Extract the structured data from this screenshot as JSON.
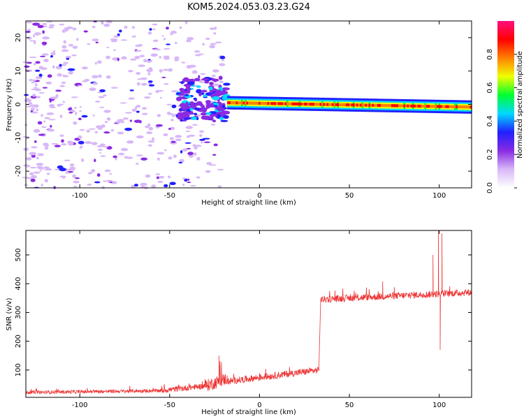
{
  "title": "KOM5.2024.053.03.23.G24",
  "chart_data": [
    {
      "type": "heatmap",
      "xlabel": "Height of straight line (km)",
      "ylabel": "Frequency (Hz)",
      "xlim": [
        -130,
        118
      ],
      "ylim": [
        -25,
        25
      ],
      "xticks": [
        -100,
        -50,
        0,
        50,
        100
      ],
      "yticks": [
        -20,
        -10,
        0,
        10,
        20
      ],
      "colorbar": {
        "label": "Normalized spectral amplitude",
        "range": [
          0,
          1
        ],
        "ticks": [
          "0.0",
          "0.2",
          "0.4",
          "0.6",
          "0.8"
        ],
        "colors": [
          "#ffffff",
          "#d8b8f8",
          "#8a2be2",
          "#2020ff",
          "#00d8ff",
          "#00ff30",
          "#f0ff00",
          "#ff8000",
          "#ff0000",
          "#ff1080"
        ]
      },
      "features": [
        {
          "name": "noise",
          "x_range": [
            -130,
            -40
          ],
          "y_range": [
            -25,
            25
          ],
          "amplitude": 0.1
        },
        {
          "name": "cluster",
          "x_range": [
            -45,
            -18
          ],
          "y_range": [
            -5,
            8
          ],
          "amplitude": 0.25
        },
        {
          "name": "carrier",
          "x_range": [
            -18,
            118
          ],
          "y": [
            0.5,
            -0.8
          ],
          "amplitude": 0.85
        }
      ]
    },
    {
      "type": "line",
      "xlabel": "Height of straight line (km)",
      "ylabel": "SNR (v/v)",
      "xlim": [
        -130,
        118
      ],
      "ylim": [
        5,
        585
      ],
      "xticks": [
        -100,
        -50,
        0,
        50,
        100
      ],
      "yticks": [
        100,
        200,
        300,
        400,
        500
      ],
      "color": "#ee3333",
      "segments": [
        {
          "x": [
            -130,
            -55
          ],
          "snr": [
            22,
            28
          ],
          "noise": 6
        },
        {
          "x": [
            -55,
            -30
          ],
          "snr": [
            28,
            45
          ],
          "noise": 10
        },
        {
          "x": [
            -30,
            -18
          ],
          "snr": [
            45,
            70
          ],
          "noise": 22
        },
        {
          "x": [
            -18,
            33
          ],
          "snr": [
            60,
            100
          ],
          "noise": 12
        },
        {
          "x": [
            34,
            118
          ],
          "snr": [
            345,
            370
          ],
          "noise": 12
        }
      ],
      "spikes": [
        {
          "x": -22.5,
          "snr": 150
        },
        {
          "x": 68.5,
          "snr": 408
        },
        {
          "x": 96.5,
          "snr": 500
        },
        {
          "x": 99.5,
          "snr": 585
        },
        {
          "x": 101.5,
          "snr": 575
        },
        {
          "x": 100.5,
          "snr": 170
        }
      ]
    }
  ]
}
